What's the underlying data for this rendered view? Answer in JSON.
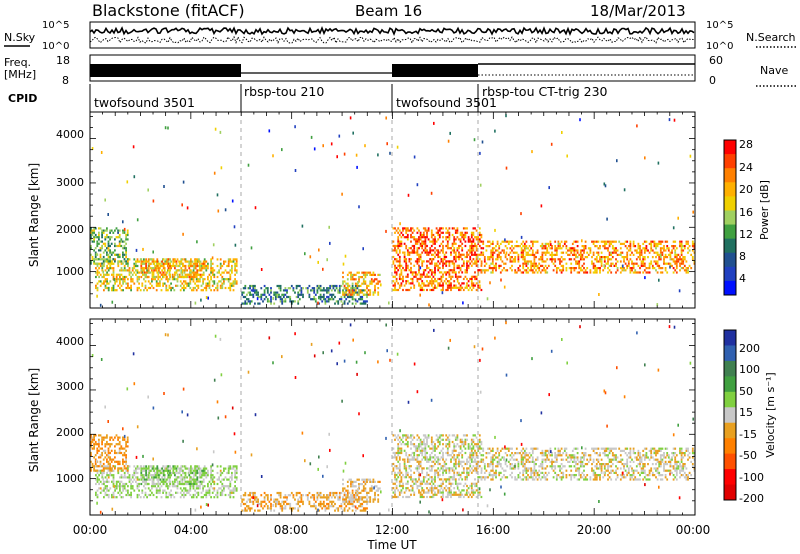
{
  "header": {
    "station": "Blackstone (fitACF)",
    "beam": "Beam 16",
    "date": "18/Mar/2013"
  },
  "noise_panel": {
    "left_label": "N.Sky",
    "right_label": "N.Search",
    "left_ticks": [
      "10^5",
      "10^0"
    ],
    "right_ticks": [
      "10^5",
      "10^0"
    ]
  },
  "freq_panel": {
    "left_label_1": "Freq.",
    "left_label_2": "[MHz]",
    "right_label": "Nave",
    "left_ticks": [
      "18",
      "8"
    ],
    "right_ticks": [
      "60",
      "0"
    ]
  },
  "cpid_panel": {
    "label": "CPID",
    "segments": [
      {
        "start_hour": 0.0,
        "end_hour": 6.0,
        "name": "twofsound 3501"
      },
      {
        "start_hour": 6.0,
        "end_hour": 12.0,
        "name": "rbsp-tou 210"
      },
      {
        "start_hour": 12.0,
        "end_hour": 15.5,
        "name": "twofsound 3501"
      },
      {
        "start_hour": 15.5,
        "end_hour": 24.0,
        "name": "rbsp-tou CT-trig 230"
      }
    ]
  },
  "power_panel": {
    "ylabel": "Slant Range [km]",
    "yticks": [
      "4000",
      "3000",
      "2000",
      "1000"
    ],
    "colorbar_label": "Power [dB]",
    "colorbar_ticks": [
      "28",
      "24",
      "20",
      "16",
      "12",
      "8",
      "4"
    ],
    "colorbar_colors": [
      "#ff0000",
      "#ff4000",
      "#ff8000",
      "#ffb000",
      "#f0d000",
      "#a0d060",
      "#40a040",
      "#207060",
      "#205090",
      "#2040c0",
      "#0010ff"
    ]
  },
  "velocity_panel": {
    "ylabel": "Slant Range [km]",
    "yticks": [
      "4000",
      "3000",
      "2000",
      "1000"
    ],
    "colorbar_label": "Velocity [m s⁻¹]",
    "colorbar_ticks": [
      "200",
      "100",
      "50",
      "15",
      "-15",
      "-50",
      "-100",
      "-200"
    ],
    "colorbar_colors": [
      "#2030a0",
      "#3060b0",
      "#408050",
      "#40a040",
      "#80d040",
      "#c8c8c8",
      "#e8a020",
      "#ff8000",
      "#ff5000",
      "#ff0000",
      "#e00000"
    ]
  },
  "xaxis": {
    "label": "Time UT",
    "ticks": [
      "00:00",
      "04:00",
      "08:00",
      "12:00",
      "16:00",
      "20:00",
      "00:00"
    ]
  },
  "chart_data": {
    "type": "heatmap",
    "x_range_hours": [
      0,
      24
    ],
    "y_range_km": [
      180,
      4600
    ],
    "power_scale_db": [
      0,
      30
    ],
    "velocity_scale_ms": [
      -250,
      250
    ],
    "echo_regions": [
      {
        "start_hour": 0.2,
        "end_hour": 5.8,
        "range_km": [
          600,
          1300
        ],
        "power_db": 18,
        "velocity_ms": 20
      },
      {
        "start_hour": 0.0,
        "end_hour": 1.5,
        "range_km": [
          1200,
          2000
        ],
        "power_db": 14,
        "velocity_ms": -60
      },
      {
        "start_hour": 2.0,
        "end_hour": 4.5,
        "range_km": [
          900,
          1300
        ],
        "power_db": 20,
        "velocity_ms": 40
      },
      {
        "start_hour": 6.0,
        "end_hour": 11.0,
        "range_km": [
          300,
          700
        ],
        "power_db": 10,
        "velocity_ms": -40
      },
      {
        "start_hour": 10.0,
        "end_hour": 11.5,
        "range_km": [
          500,
          1000
        ],
        "power_db": 20,
        "velocity_ms": -30
      },
      {
        "start_hour": 12.0,
        "end_hour": 15.5,
        "range_km": [
          600,
          2000
        ],
        "power_db": 24,
        "velocity_ms": -5
      },
      {
        "start_hour": 15.5,
        "end_hour": 24.0,
        "range_km": [
          1000,
          1700
        ],
        "power_db": 22,
        "velocity_ms": -5
      }
    ]
  }
}
